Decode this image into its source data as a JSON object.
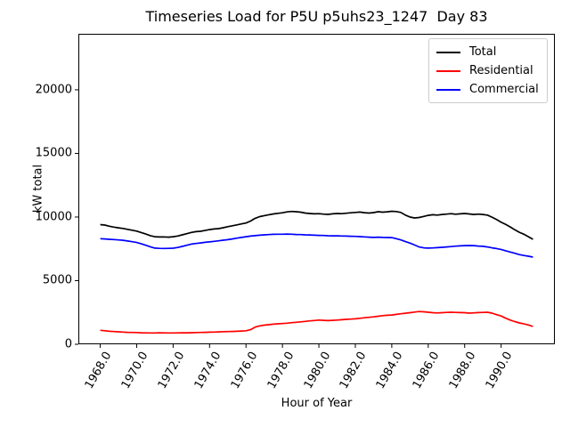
{
  "title": "Timeseries Load for P5U p5uhs23_1247  Day 83",
  "axis": {
    "xlabel": "Hour of Year",
    "ylabel": "kW total"
  },
  "legend": {
    "position": "upper right",
    "entries": [
      {
        "label": "Total",
        "color": "#000000"
      },
      {
        "label": "Residential",
        "color": "#ff0000"
      },
      {
        "label": "Commercial",
        "color": "#0000ff"
      }
    ]
  },
  "chart_data": {
    "type": "line",
    "title": "Timeseries Load for P5U p5uhs23_1247  Day 83",
    "xlabel": "Hour of Year",
    "ylabel": "kW total",
    "xlim": [
      1966.8,
      1992.95
    ],
    "ylim": [
      0,
      24400
    ],
    "xticks": [
      1968,
      1970,
      1972,
      1974,
      1976,
      1978,
      1980,
      1982,
      1984,
      1986,
      1988,
      1990
    ],
    "xtick_labels": [
      "1968.0",
      "1970.0",
      "1972.0",
      "1974.0",
      "1976.0",
      "1978.0",
      "1980.0",
      "1982.0",
      "1984.0",
      "1986.0",
      "1988.0",
      "1990.0"
    ],
    "yticks": [
      0,
      5000,
      10000,
      15000,
      20000
    ],
    "ytick_labels": [
      "0",
      "5000",
      "10000",
      "15000",
      "20000"
    ],
    "grid": false,
    "legend_position": "upper right",
    "x": [
      1968.0,
      1968.25,
      1968.5,
      1968.75,
      1969.0,
      1969.25,
      1969.5,
      1969.75,
      1970.0,
      1970.25,
      1970.5,
      1970.75,
      1971.0,
      1971.25,
      1971.5,
      1971.75,
      1972.0,
      1972.25,
      1972.5,
      1972.75,
      1973.0,
      1973.25,
      1973.5,
      1973.75,
      1974.0,
      1974.25,
      1974.5,
      1974.75,
      1975.0,
      1975.25,
      1975.5,
      1975.75,
      1976.0,
      1976.25,
      1976.5,
      1976.75,
      1977.0,
      1977.25,
      1977.5,
      1977.75,
      1978.0,
      1978.25,
      1978.5,
      1978.75,
      1979.0,
      1979.25,
      1979.5,
      1979.75,
      1980.0,
      1980.25,
      1980.5,
      1980.75,
      1981.0,
      1981.25,
      1981.5,
      1981.75,
      1982.0,
      1982.25,
      1982.5,
      1982.75,
      1983.0,
      1983.25,
      1983.5,
      1983.75,
      1984.0,
      1984.25,
      1984.5,
      1984.75,
      1985.0,
      1985.25,
      1985.5,
      1985.75,
      1986.0,
      1986.25,
      1986.5,
      1986.75,
      1987.0,
      1987.25,
      1987.5,
      1987.75,
      1988.0,
      1988.25,
      1988.5,
      1988.75,
      1989.0,
      1989.25,
      1989.5,
      1989.75,
      1990.0,
      1990.25,
      1990.5,
      1990.75,
      1991.0,
      1991.25,
      1991.5,
      1991.75
    ],
    "series": [
      {
        "name": "Total",
        "color": "#000000",
        "values": [
          9400,
          9370,
          9280,
          9210,
          9150,
          9100,
          9030,
          8960,
          8890,
          8780,
          8660,
          8540,
          8450,
          8430,
          8440,
          8420,
          8450,
          8510,
          8600,
          8690,
          8790,
          8850,
          8880,
          8940,
          9010,
          9060,
          9090,
          9160,
          9240,
          9310,
          9380,
          9460,
          9530,
          9680,
          9900,
          10030,
          10110,
          10180,
          10240,
          10290,
          10330,
          10400,
          10440,
          10420,
          10380,
          10310,
          10280,
          10250,
          10260,
          10230,
          10210,
          10250,
          10280,
          10260,
          10300,
          10330,
          10360,
          10390,
          10340,
          10310,
          10350,
          10420,
          10380,
          10410,
          10450,
          10430,
          10360,
          10150,
          10000,
          9930,
          9960,
          10050,
          10130,
          10180,
          10150,
          10200,
          10230,
          10260,
          10220,
          10250,
          10280,
          10240,
          10200,
          10230,
          10200,
          10150,
          9990,
          9800,
          9600,
          9420,
          9220,
          9000,
          8800,
          8650,
          8450,
          8250
        ]
      },
      {
        "name": "Residential",
        "color": "#ff0000",
        "values": [
          1100,
          1060,
          1020,
          1000,
          980,
          960,
          940,
          930,
          920,
          905,
          895,
          890,
          890,
          900,
          895,
          890,
          890,
          895,
          900,
          905,
          910,
          920,
          930,
          940,
          950,
          960,
          975,
          990,
          1000,
          1010,
          1020,
          1040,
          1060,
          1150,
          1350,
          1450,
          1500,
          1540,
          1580,
          1610,
          1630,
          1660,
          1700,
          1730,
          1760,
          1800,
          1840,
          1870,
          1900,
          1880,
          1860,
          1880,
          1900,
          1930,
          1960,
          1980,
          2000,
          2040,
          2080,
          2120,
          2150,
          2200,
          2250,
          2280,
          2300,
          2350,
          2400,
          2440,
          2480,
          2530,
          2570,
          2550,
          2520,
          2480,
          2460,
          2480,
          2500,
          2520,
          2500,
          2490,
          2480,
          2450,
          2470,
          2490,
          2500,
          2520,
          2450,
          2330,
          2220,
          2050,
          1900,
          1780,
          1680,
          1600,
          1520,
          1400
        ]
      },
      {
        "name": "Commercial",
        "color": "#0000ff",
        "values": [
          8300,
          8280,
          8250,
          8230,
          8200,
          8170,
          8120,
          8060,
          8000,
          7890,
          7780,
          7660,
          7560,
          7540,
          7530,
          7540,
          7550,
          7610,
          7690,
          7780,
          7870,
          7920,
          7960,
          8010,
          8050,
          8090,
          8130,
          8180,
          8220,
          8280,
          8340,
          8400,
          8450,
          8500,
          8540,
          8570,
          8600,
          8620,
          8640,
          8650,
          8650,
          8660,
          8650,
          8630,
          8620,
          8600,
          8590,
          8570,
          8560,
          8550,
          8530,
          8520,
          8520,
          8510,
          8500,
          8490,
          8480,
          8460,
          8440,
          8420,
          8400,
          8420,
          8400,
          8390,
          8380,
          8300,
          8200,
          8070,
          7950,
          7800,
          7650,
          7580,
          7560,
          7570,
          7590,
          7620,
          7650,
          7680,
          7710,
          7730,
          7750,
          7760,
          7750,
          7720,
          7700,
          7650,
          7580,
          7520,
          7450,
          7350,
          7250,
          7150,
          7050,
          6980,
          6920,
          6850
        ]
      }
    ]
  }
}
